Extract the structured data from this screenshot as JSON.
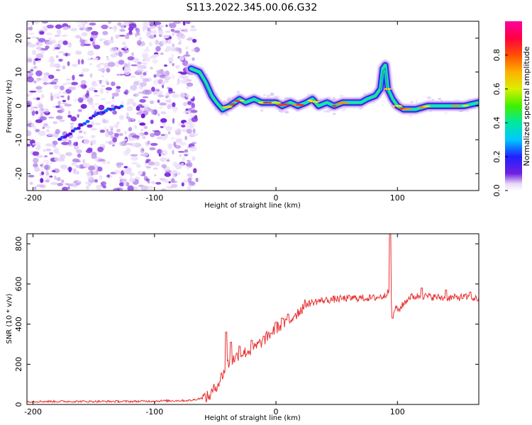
{
  "title": "S113.2022.345.00.06.G32",
  "chart_data": [
    {
      "type": "heatmap",
      "xlabel": "Height of straight line (km)",
      "ylabel": "Frequency (Hz)",
      "xlim": [
        -205,
        167
      ],
      "ylim": [
        -25,
        25
      ],
      "xticks": [
        -200,
        -100,
        0,
        100
      ],
      "yticks": [
        -20,
        -10,
        0,
        10,
        20
      ],
      "colorbar": {
        "label": "Normalized spectral amplitude",
        "range": [
          0,
          1
        ],
        "ticks": [
          "0.0",
          "0.2",
          "0.4",
          "0.6",
          "0.8"
        ],
        "tick_values": [
          0,
          0.2,
          0.4,
          0.6,
          0.8
        ]
      },
      "noise_region": {
        "x": [
          -205,
          -65
        ],
        "y": [
          -25,
          25
        ]
      },
      "weak_trace": [
        [
          -178,
          -10
        ],
        [
          -165,
          -7
        ],
        [
          -150,
          -3
        ],
        [
          -138,
          -1
        ],
        [
          -125,
          0
        ]
      ],
      "ridge": [
        [
          -70,
          11
        ],
        [
          -63,
          10
        ],
        [
          -58,
          7
        ],
        [
          -53,
          3
        ],
        [
          -49,
          1
        ],
        [
          -44,
          -1
        ],
        [
          -38,
          0
        ],
        [
          -30,
          2
        ],
        [
          -25,
          1
        ],
        [
          -18,
          2
        ],
        [
          -12,
          1
        ],
        [
          -5,
          1
        ],
        [
          0,
          1
        ],
        [
          5,
          0
        ],
        [
          12,
          1
        ],
        [
          18,
          0
        ],
        [
          25,
          1
        ],
        [
          30,
          2
        ],
        [
          35,
          0
        ],
        [
          42,
          1
        ],
        [
          48,
          0
        ],
        [
          55,
          1
        ],
        [
          62,
          1
        ],
        [
          70,
          1
        ],
        [
          75,
          2
        ],
        [
          82,
          3
        ],
        [
          86,
          5
        ],
        [
          88,
          11
        ],
        [
          90,
          12
        ],
        [
          92,
          5
        ],
        [
          96,
          2
        ],
        [
          100,
          0
        ],
        [
          105,
          -1
        ],
        [
          115,
          -1
        ],
        [
          125,
          0
        ],
        [
          135,
          0
        ],
        [
          145,
          0
        ],
        [
          155,
          0
        ],
        [
          167,
          1
        ]
      ]
    },
    {
      "type": "line",
      "xlabel": "Height of straight line (km)",
      "ylabel": "SNR (10 * v/v)",
      "xlim": [
        -205,
        167
      ],
      "ylim": [
        0,
        850
      ],
      "xticks": [
        -200,
        -100,
        0,
        100
      ],
      "yticks": [
        0,
        200,
        400,
        600,
        800
      ],
      "color": "#e83030",
      "envelope": [
        [
          -205,
          15
        ],
        [
          -120,
          15
        ],
        [
          -90,
          18
        ],
        [
          -70,
          20
        ],
        [
          -55,
          40
        ],
        [
          -47,
          110
        ],
        [
          -40,
          200
        ],
        [
          -30,
          250
        ],
        [
          -20,
          270
        ],
        [
          -10,
          320
        ],
        [
          0,
          380
        ],
        [
          10,
          410
        ],
        [
          20,
          470
        ],
        [
          25,
          500
        ],
        [
          35,
          515
        ],
        [
          50,
          525
        ],
        [
          65,
          530
        ],
        [
          80,
          530
        ],
        [
          90,
          540
        ],
        [
          93,
          580
        ],
        [
          94,
          850
        ],
        [
          95,
          520
        ],
        [
          96,
          440
        ],
        [
          98,
          480
        ],
        [
          101,
          470
        ],
        [
          105,
          500
        ],
        [
          110,
          535
        ],
        [
          120,
          540
        ],
        [
          140,
          530
        ],
        [
          155,
          535
        ],
        [
          167,
          525
        ]
      ],
      "spikes": [
        [
          -41,
          360
        ],
        [
          -37,
          310
        ],
        [
          -30,
          290
        ],
        [
          -20,
          320
        ],
        [
          -10,
          340
        ],
        [
          0,
          410
        ],
        [
          5,
          430
        ],
        [
          10,
          450
        ],
        [
          15,
          440
        ],
        [
          94,
          850
        ],
        [
          96,
          430
        ],
        [
          120,
          580
        ],
        [
          140,
          570
        ],
        [
          160,
          560
        ]
      ]
    }
  ]
}
